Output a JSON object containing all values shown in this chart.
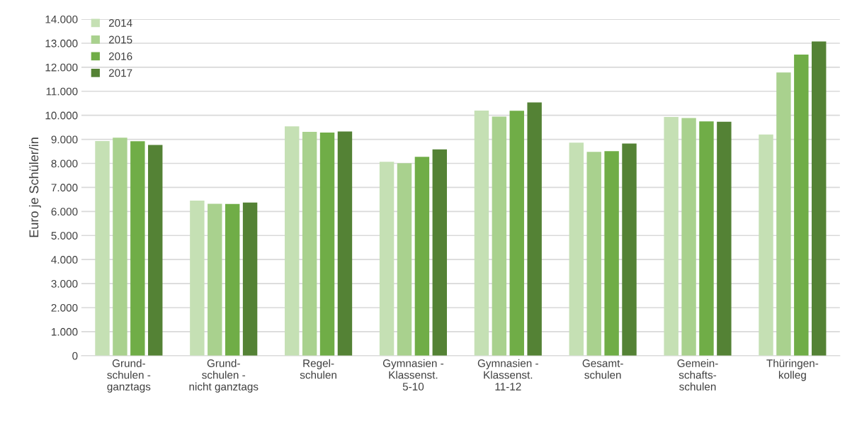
{
  "chart_data": {
    "type": "bar",
    "ylabel": "Euro je Schüler/in",
    "categories": [
      "Grund-\nschulen -\nganztags",
      "Grund-\nschulen -\nnicht ganztags",
      "Regel-\nschulen",
      "Gymnasien -\nKlassenst.\n5-10",
      "Gymnasien -\nKlassenst.\n11-12",
      "Gesamt-\nschulen",
      "Gemein-\nschafts-\nschulen",
      "Thüringen-\nkolleg"
    ],
    "series": [
      {
        "name": "2014",
        "color": "#c5e0b4",
        "values": [
          8930,
          6450,
          9540,
          8070,
          10200,
          8860,
          9930,
          9200
        ]
      },
      {
        "name": "2015",
        "color": "#a9d18e",
        "values": [
          9070,
          6320,
          9310,
          8010,
          9950,
          8480,
          9890,
          11780
        ]
      },
      {
        "name": "2016",
        "color": "#70ad47",
        "values": [
          8920,
          6310,
          9280,
          8270,
          10190,
          8510,
          9750,
          12530
        ]
      },
      {
        "name": "2017",
        "color": "#548235",
        "values": [
          8770,
          6370,
          9330,
          8580,
          10540,
          8830,
          9730,
          13070
        ]
      }
    ],
    "ylim": [
      0,
      14000
    ],
    "yticks": [
      {
        "value": 0,
        "label": "0"
      },
      {
        "value": 1000,
        "label": "1.000"
      },
      {
        "value": 2000,
        "label": "2.000"
      },
      {
        "value": 3000,
        "label": "3.000"
      },
      {
        "value": 4000,
        "label": "4.000"
      },
      {
        "value": 5000,
        "label": "5.000"
      },
      {
        "value": 6000,
        "label": "6.000"
      },
      {
        "value": 7000,
        "label": "7.000"
      },
      {
        "value": 8000,
        "label": "8.000"
      },
      {
        "value": 9000,
        "label": "9.000"
      },
      {
        "value": 10000,
        "label": "10.000"
      },
      {
        "value": 11000,
        "label": "11.000"
      },
      {
        "value": 12000,
        "label": "12.000"
      },
      {
        "value": 13000,
        "label": "13.000"
      },
      {
        "value": 14000,
        "label": "14.000"
      }
    ],
    "grid": "y",
    "legend": "top left"
  }
}
